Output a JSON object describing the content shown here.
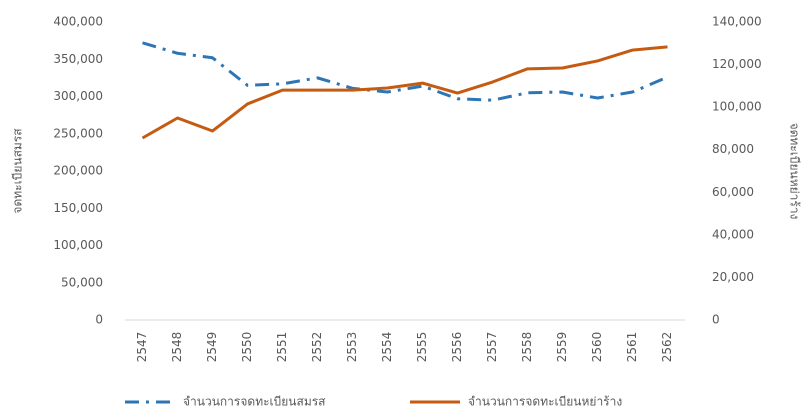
{
  "chart_data": {
    "type": "line",
    "categories": [
      "2547",
      "2548",
      "2549",
      "2550",
      "2551",
      "2552",
      "2553",
      "2554",
      "2555",
      "2556",
      "2557",
      "2558",
      "2559",
      "2560",
      "2561",
      "2562"
    ],
    "ylabel": "จดทะเบียนสมรส",
    "y2label": "จดทะเบียนหย่าร้าง",
    "ylim": [
      0,
      400000
    ],
    "yticks": [
      0,
      {
        "value": 50000,
        "label": "50,000"
      },
      {
        "value": 100000,
        "label": "100,000"
      },
      {
        "value": 150000,
        "label": "150,000"
      },
      {
        "value": 200000,
        "label": "200,000"
      },
      {
        "value": 250000,
        "label": "250,000"
      },
      {
        "value": 300000,
        "label": "300,000"
      },
      {
        "value": 350000,
        "label": "350,000"
      },
      {
        "value": 400000,
        "label": "400,000"
      }
    ],
    "y2lim": [
      0,
      140000
    ],
    "y2ticks": [
      0,
      {
        "value": 20000,
        "label": "20,000"
      },
      {
        "value": 40000,
        "label": "40,000"
      },
      {
        "value": 60000,
        "label": "60,000"
      },
      {
        "value": 80000,
        "label": "80,000"
      },
      {
        "value": 100000,
        "label": "100,000"
      },
      {
        "value": 120000,
        "label": "120,000"
      },
      {
        "value": 140000,
        "label": "140,000"
      }
    ],
    "grid": false,
    "legend": "bottom",
    "series": [
      {
        "name": "จำนวนการจดทะเบียนสมรส",
        "color": "#2e75b6",
        "dash": "dash-dot",
        "axis": "y",
        "values": [
          372000,
          358000,
          352000,
          315000,
          317000,
          325000,
          311000,
          306000,
          314000,
          297000,
          295000,
          305000,
          306000,
          298000,
          306000,
          326000
        ]
      },
      {
        "name": "จำนวนการจดทะเบียนหย่าร้าง",
        "color": "#c55a11",
        "dash": "solid",
        "axis": "y2",
        "values": [
          85500,
          94900,
          88800,
          101500,
          108000,
          108000,
          108000,
          109000,
          111300,
          106600,
          111800,
          118000,
          118400,
          121700,
          126800,
          128300
        ]
      }
    ]
  }
}
